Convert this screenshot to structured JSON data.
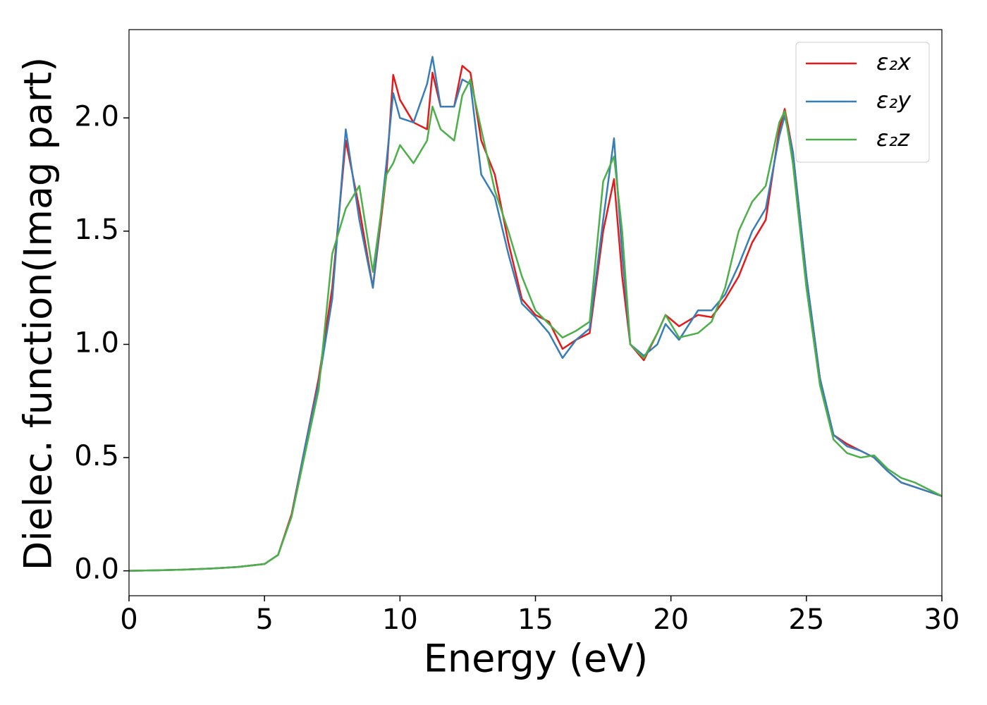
{
  "chart_data": {
    "type": "line",
    "xlabel": "Energy (eV)",
    "ylabel": "Dielec. function(Imag part)",
    "x": [
      0,
      1,
      2,
      3,
      4,
      5,
      5.5,
      6,
      6.5,
      7,
      7.5,
      8,
      8.5,
      9,
      9.5,
      9.75,
      10,
      10.5,
      11,
      11.2,
      11.5,
      12,
      12.3,
      12.6,
      13,
      13.5,
      14,
      14.5,
      15,
      15.5,
      16,
      16.5,
      17,
      17.5,
      17.9,
      18.2,
      18.5,
      19,
      19.5,
      19.8,
      20.3,
      21,
      21.5,
      22,
      22.5,
      23,
      23.5,
      24,
      24.2,
      24.5,
      25,
      25.5,
      26,
      26.5,
      27,
      27.5,
      28,
      28.5,
      29,
      29.5,
      30
    ],
    "series": [
      {
        "name": "ε₂x",
        "color": "#e41a1c",
        "values": [
          0,
          0.002,
          0.005,
          0.01,
          0.017,
          0.03,
          0.07,
          0.25,
          0.55,
          0.85,
          1.25,
          1.9,
          1.6,
          1.25,
          1.75,
          2.19,
          2.08,
          1.98,
          1.95,
          2.2,
          2.05,
          2.05,
          2.23,
          2.2,
          1.9,
          1.75,
          1.45,
          1.2,
          1.13,
          1.1,
          0.98,
          1.02,
          1.05,
          1.5,
          1.73,
          1.3,
          1.0,
          0.93,
          1.05,
          1.13,
          1.08,
          1.13,
          1.12,
          1.2,
          1.3,
          1.45,
          1.55,
          1.95,
          2.04,
          1.85,
          1.3,
          0.85,
          0.6,
          0.56,
          0.53,
          0.5,
          0.44,
          0.39,
          0.37,
          0.35,
          0.33
        ]
      },
      {
        "name": "ε₂y",
        "color": "#377eb8",
        "values": [
          0,
          0.002,
          0.005,
          0.01,
          0.017,
          0.03,
          0.07,
          0.24,
          0.55,
          0.83,
          1.2,
          1.95,
          1.55,
          1.25,
          1.8,
          2.11,
          2.0,
          1.98,
          2.15,
          2.27,
          2.05,
          2.05,
          2.17,
          2.15,
          1.75,
          1.65,
          1.4,
          1.18,
          1.12,
          1.05,
          0.94,
          1.02,
          1.07,
          1.55,
          1.91,
          1.4,
          1.0,
          0.95,
          1.0,
          1.09,
          1.02,
          1.15,
          1.15,
          1.22,
          1.35,
          1.5,
          1.6,
          1.92,
          2.01,
          1.85,
          1.3,
          0.85,
          0.6,
          0.55,
          0.53,
          0.5,
          0.44,
          0.39,
          0.37,
          0.35,
          0.33
        ]
      },
      {
        "name": "ε₂z",
        "color": "#4daf4a",
        "values": [
          0,
          0.002,
          0.005,
          0.01,
          0.017,
          0.03,
          0.07,
          0.24,
          0.52,
          0.8,
          1.4,
          1.6,
          1.7,
          1.32,
          1.75,
          1.8,
          1.88,
          1.8,
          1.9,
          2.05,
          1.95,
          1.9,
          2.1,
          2.17,
          1.95,
          1.68,
          1.5,
          1.3,
          1.15,
          1.09,
          1.03,
          1.06,
          1.1,
          1.72,
          1.83,
          1.5,
          1.0,
          0.94,
          1.05,
          1.13,
          1.03,
          1.05,
          1.1,
          1.25,
          1.5,
          1.63,
          1.7,
          1.98,
          2.03,
          1.8,
          1.25,
          0.82,
          0.58,
          0.52,
          0.5,
          0.51,
          0.45,
          0.41,
          0.39,
          0.36,
          0.33
        ]
      }
    ],
    "xlim": [
      0,
      30
    ],
    "xticks": [
      0,
      5,
      10,
      15,
      20,
      25,
      30
    ],
    "ylim": [
      -0.11,
      2.39
    ],
    "yticks": [
      {
        "value": 0,
        "label": "0.0"
      },
      {
        "value": 0.5,
        "label": "0.5"
      },
      {
        "value": 1,
        "label": "1.0"
      },
      {
        "value": 1.5,
        "label": "1.5"
      },
      {
        "value": 2,
        "label": "2.0"
      }
    ],
    "grid": false,
    "legend": "upper right"
  }
}
